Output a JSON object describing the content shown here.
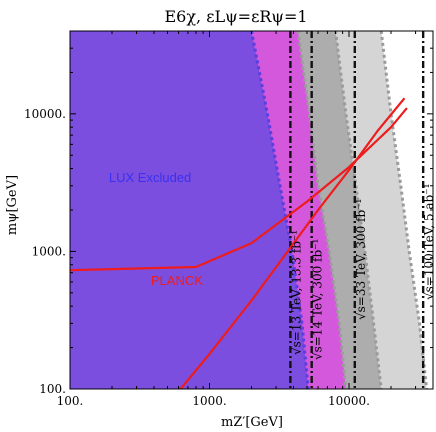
{
  "chart_data": {
    "type": "area",
    "title": "E6χ, εLψ=εRψ=1",
    "xlabel": "mZ′[GeV]",
    "ylabel": "mψ[GeV]",
    "xscale": "log",
    "yscale": "log",
    "xlim": [
      100,
      40000
    ],
    "ylim": [
      100,
      40000
    ],
    "x_ticks": [
      100,
      1000,
      10000
    ],
    "x_tick_labels": [
      "100.",
      "1000.",
      "10000."
    ],
    "y_ticks": [
      100,
      1000,
      10000
    ],
    "y_tick_labels": [
      "100.",
      "1000.",
      "10000."
    ],
    "regions": [
      {
        "label": "LUX Excluded",
        "color": "#7b4ee0",
        "boundary": [
          [
            2000,
            40000
          ],
          [
            2600,
            10000
          ],
          [
            3200,
            3000
          ],
          [
            3900,
            1000
          ],
          [
            4600,
            300
          ],
          [
            5100,
            100
          ]
        ]
      },
      {
        "label": "√s=14 TeV, 300 fb⁻¹",
        "color": "#d84fe0",
        "boundary": [
          [
            4300,
            40000
          ],
          [
            5200,
            10000
          ],
          [
            6000,
            3000
          ],
          [
            7200,
            1000
          ],
          [
            8500,
            300
          ],
          [
            9500,
            100
          ]
        ]
      },
      {
        "label": "√s=33 TeV, 300 fb⁻¹",
        "color": "#a8a8a8",
        "boundary": [
          [
            8000,
            40000
          ],
          [
            9500,
            10000
          ],
          [
            11200,
            3000
          ],
          [
            13000,
            1000
          ],
          [
            15000,
            300
          ],
          [
            17000,
            100
          ]
        ]
      },
      {
        "label": "√s=100 TeV, 5 ab⁻¹",
        "color": "#d0d0d0",
        "boundary": [
          [
            17000,
            40000
          ],
          [
            20000,
            10000
          ],
          [
            23500,
            3000
          ],
          [
            27000,
            1000
          ],
          [
            32000,
            300
          ],
          [
            36000,
            100
          ]
        ]
      }
    ],
    "vertical_lines": [
      {
        "x": 3800,
        "label": "√s=13 TeV, 13.3 fb⁻¹"
      },
      {
        "x": 5400,
        "label": "√s=14 TeV, 300 fb⁻¹"
      },
      {
        "x": 11000,
        "label": "√s=33 TeV, 300 fb⁻¹"
      },
      {
        "x": 34000,
        "label": "√s=100 TeV, 5 ab⁻¹"
      }
    ],
    "series": [
      {
        "name": "PLANCK",
        "color": "#ee1c1c",
        "x": [
          100,
          800,
          2000,
          5000,
          10000,
          20000,
          26000
        ],
        "y": [
          730,
          770,
          1150,
          2300,
          4100,
          8000,
          11000
        ]
      },
      {
        "name": "PLANCK",
        "color": "#ee1c1c",
        "x": [
          620,
          1000,
          2000,
          3500,
          6000,
          10000,
          16000,
          25000
        ],
        "y": [
          100,
          180,
          440,
          950,
          2000,
          3900,
          7500,
          13000
        ]
      }
    ],
    "annotations": [
      {
        "text": "LUX Excluded",
        "x": 190,
        "y": 3200,
        "color": "#3a30f0"
      },
      {
        "text": "PLANCK",
        "x": 380,
        "y": 570,
        "color": "#ee1c1c"
      }
    ]
  }
}
